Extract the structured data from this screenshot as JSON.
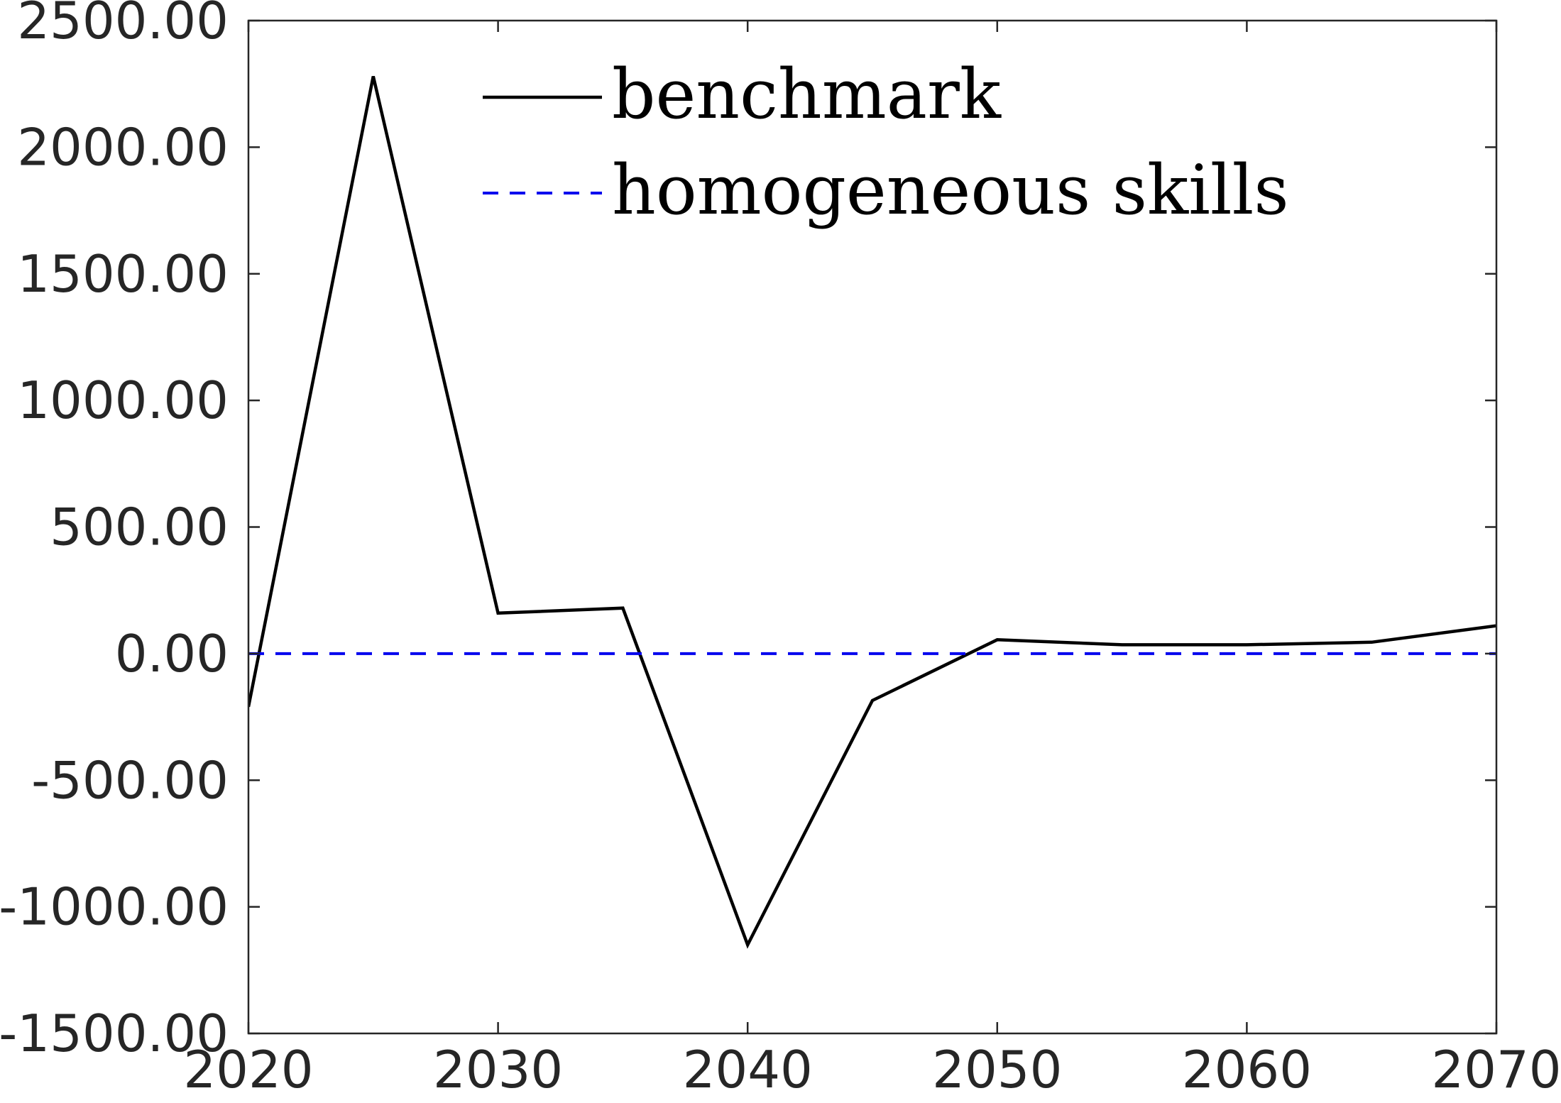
{
  "chart_data": {
    "type": "line",
    "title": "",
    "xlabel": "",
    "ylabel": "",
    "xlim": [
      2020,
      2070
    ],
    "ylim": [
      -1500,
      2500
    ],
    "x_ticks": [
      2020,
      2030,
      2040,
      2050,
      2060,
      2070
    ],
    "x_tick_labels": [
      "2020",
      "2030",
      "2040",
      "2050",
      "2060",
      "2070"
    ],
    "y_ticks": [
      -1500,
      -1000,
      -500,
      0,
      500,
      1000,
      1500,
      2000,
      2500
    ],
    "y_tick_labels": [
      "-1500.00",
      "-1000.00",
      "-500.00",
      "0.00",
      "500.00",
      "1000.00",
      "1500.00",
      "2000.00",
      "2500.00"
    ],
    "grid": false,
    "legend_position": "top-center",
    "series": [
      {
        "name": "benchmark",
        "color": "#000000",
        "style": "solid",
        "x": [
          2020,
          2025,
          2030,
          2035,
          2040,
          2045,
          2050,
          2055,
          2060,
          2065,
          2070
        ],
        "y": [
          -210,
          2280,
          160,
          180,
          -1150,
          -185,
          55,
          35,
          35,
          45,
          110
        ]
      },
      {
        "name": "homogeneous skills",
        "color": "#0000ee",
        "style": "dashed",
        "x": [
          2020,
          2025,
          2030,
          2035,
          2040,
          2045,
          2050,
          2055,
          2060,
          2065,
          2070
        ],
        "y": [
          0,
          0,
          0,
          0,
          0,
          0,
          0,
          0,
          0,
          0,
          0
        ]
      }
    ]
  }
}
